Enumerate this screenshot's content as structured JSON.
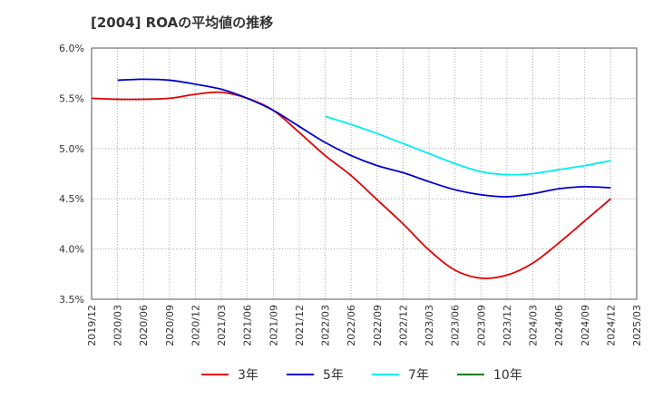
{
  "chart_data": {
    "type": "line",
    "title": "[2004]  ROAの平均値の推移",
    "xlabel": "",
    "ylabel": "",
    "ylim": [
      3.5,
      6.0
    ],
    "yticks": [
      "3.5%",
      "4.0%",
      "4.5%",
      "5.0%",
      "5.5%",
      "6.0%"
    ],
    "categories": [
      "2019/12",
      "2020/03",
      "2020/06",
      "2020/09",
      "2020/12",
      "2021/03",
      "2021/06",
      "2021/09",
      "2021/12",
      "2022/03",
      "2022/06",
      "2022/09",
      "2022/12",
      "2023/03",
      "2023/06",
      "2023/09",
      "2023/12",
      "2024/03",
      "2024/06",
      "2024/09",
      "2024/12",
      "2025/03"
    ],
    "grid": true,
    "legend_position": "bottom",
    "series": [
      {
        "name": "3年",
        "color": "#e00000",
        "values": [
          5.5,
          5.49,
          5.49,
          5.5,
          5.54,
          5.56,
          5.5,
          5.38,
          5.16,
          4.93,
          4.73,
          4.49,
          4.25,
          3.99,
          3.79,
          3.71,
          3.74,
          3.86,
          4.06,
          4.28,
          4.5,
          null
        ]
      },
      {
        "name": "5年",
        "color": "#0000cc",
        "values": [
          null,
          5.68,
          5.69,
          5.68,
          5.64,
          5.59,
          5.5,
          5.38,
          5.22,
          5.06,
          4.93,
          4.83,
          4.76,
          4.67,
          4.59,
          4.54,
          4.52,
          4.55,
          4.6,
          4.62,
          4.61,
          null
        ]
      },
      {
        "name": "7年",
        "color": "#00eeee",
        "values": [
          null,
          null,
          null,
          null,
          null,
          null,
          null,
          null,
          null,
          5.32,
          5.24,
          5.15,
          5.05,
          4.95,
          4.85,
          4.77,
          4.74,
          4.75,
          4.79,
          4.83,
          4.88,
          null
        ]
      },
      {
        "name": "10年",
        "color": "#008000",
        "values": [
          null,
          null,
          null,
          null,
          null,
          null,
          null,
          null,
          null,
          null,
          null,
          null,
          null,
          null,
          null,
          null,
          null,
          null,
          null,
          null,
          null,
          null
        ]
      }
    ]
  }
}
